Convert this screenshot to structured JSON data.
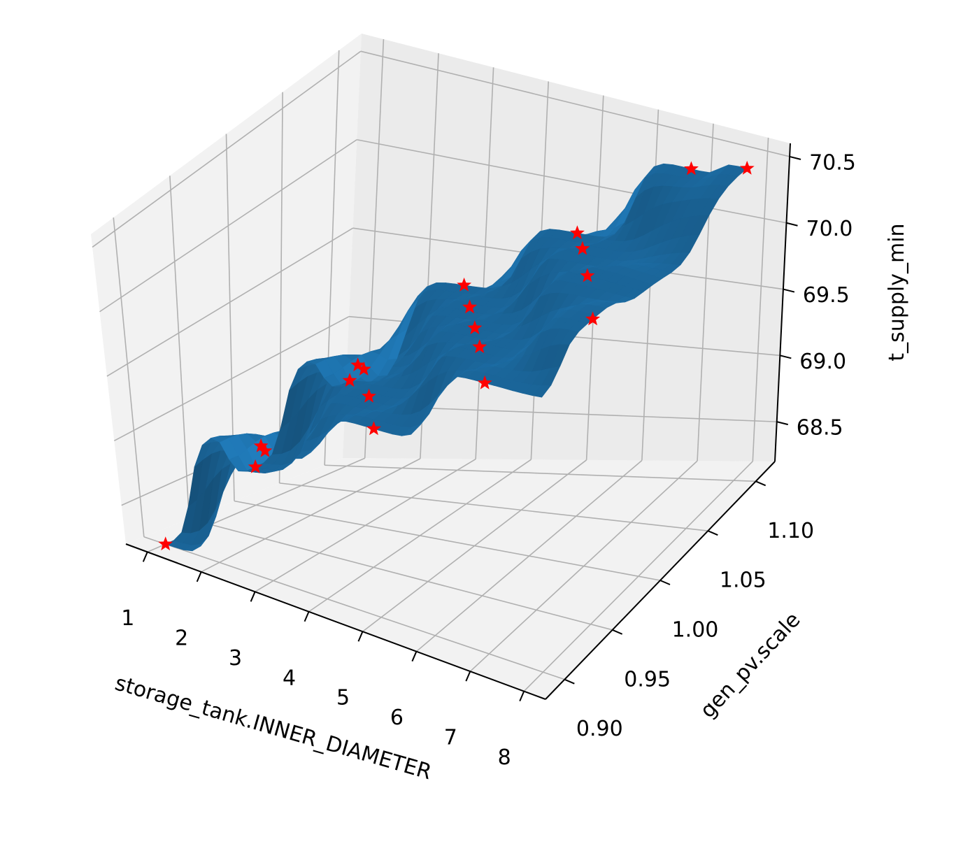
{
  "chart_data": {
    "type": "surface3d",
    "title": "",
    "xlabel": "storage_tank.INNER_DIAMETER",
    "ylabel": "gen_pv.scale",
    "zlabel": "t_supply_min",
    "xlim": [
      0.6,
      8.4
    ],
    "ylim": [
      0.88,
      1.12
    ],
    "zlim": [
      68.2,
      70.6
    ],
    "x_ticks": [
      "1",
      "2",
      "3",
      "4",
      "5",
      "6",
      "7",
      "8"
    ],
    "y_ticks": [
      "0.90",
      "0.95",
      "1.00",
      "1.05",
      "1.10"
    ],
    "z_ticks": [
      "68.5",
      "69.0",
      "69.5",
      "70.0",
      "70.5"
    ],
    "grid": true,
    "surface_color": "#1f77b4",
    "marker_color": "#ff0000",
    "marker": "star",
    "sample_points": [
      {
        "x": 1,
        "y": 0.9,
        "z": 68.2
      },
      {
        "x": 1,
        "y": 1.0,
        "z": 68.45
      },
      {
        "x": 1,
        "y": 1.1,
        "z": 68.7
      },
      {
        "x": 2,
        "y": 0.95,
        "z": 68.85
      },
      {
        "x": 2,
        "y": 1.05,
        "z": 69.0
      },
      {
        "x": 3,
        "y": 0.9,
        "z": 69.15
      },
      {
        "x": 3,
        "y": 1.0,
        "z": 69.25
      },
      {
        "x": 3,
        "y": 1.1,
        "z": 69.35
      },
      {
        "x": 4,
        "y": 0.95,
        "z": 69.4
      },
      {
        "x": 4,
        "y": 1.05,
        "z": 69.5
      },
      {
        "x": 5,
        "y": 0.9,
        "z": 69.55
      },
      {
        "x": 5,
        "y": 1.0,
        "z": 69.7
      },
      {
        "x": 5,
        "y": 1.1,
        "z": 69.8
      },
      {
        "x": 6,
        "y": 0.95,
        "z": 69.95
      },
      {
        "x": 6,
        "y": 1.05,
        "z": 70.05
      },
      {
        "x": 7,
        "y": 0.9,
        "z": 70.1
      },
      {
        "x": 7,
        "y": 1.0,
        "z": 70.25
      },
      {
        "x": 7,
        "y": 1.1,
        "z": 70.4
      },
      {
        "x": 8,
        "y": 0.95,
        "z": 70.35
      },
      {
        "x": 8,
        "y": 1.1,
        "z": 70.5
      }
    ]
  }
}
